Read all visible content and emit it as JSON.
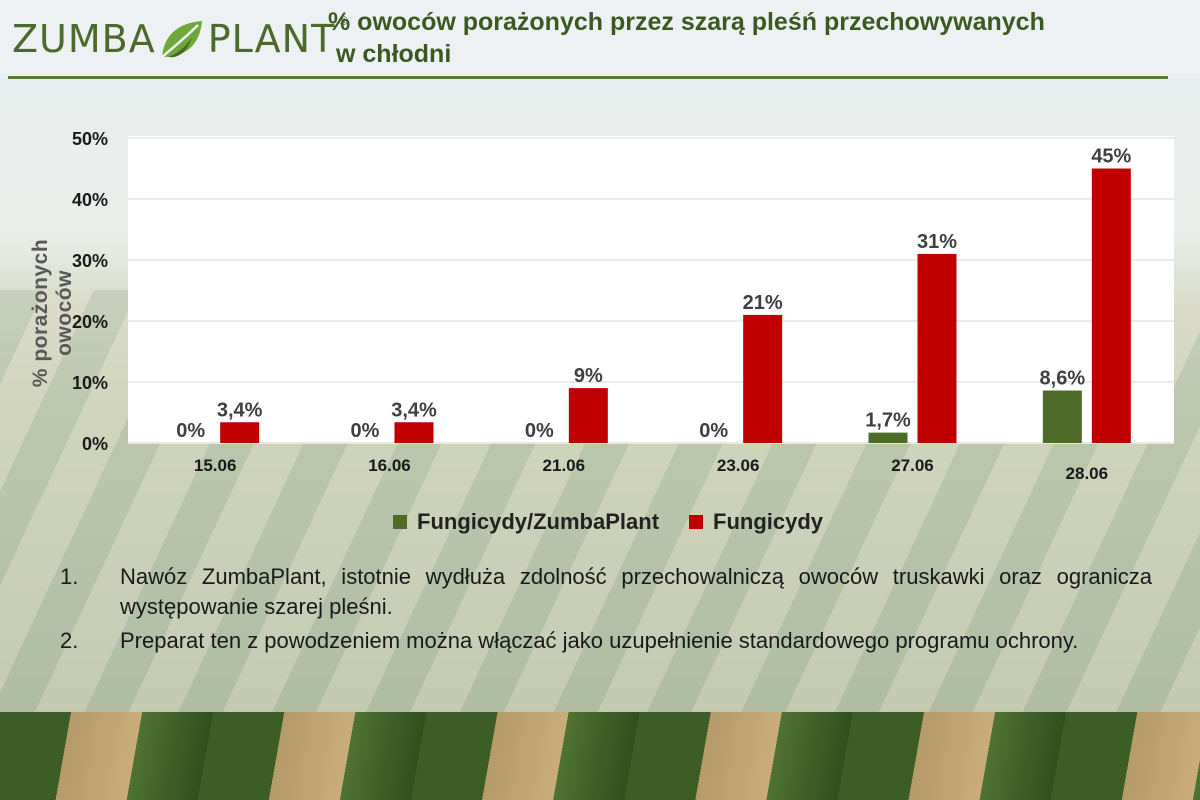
{
  "header": {
    "logo_left": "ZUMBA",
    "logo_right": "PLANT",
    "logo_reg": "®",
    "title_line1": "% owoców porażonych przez szarą pleśń przechowywanych",
    "title_line2": "w chłodni"
  },
  "colors": {
    "series1": "#4e6b2a",
    "series2": "#c00000",
    "accent": "#3a5a22"
  },
  "chart_data": {
    "type": "bar",
    "categories": [
      "15.06",
      "16.06",
      "21.06",
      "23.06",
      "27.06",
      "28.06"
    ],
    "series": [
      {
        "name": "Fungicydy/ZumbaPlant",
        "values": [
          0,
          0,
          0,
          0,
          1.7,
          8.6
        ],
        "labels": [
          "0%",
          "0%",
          "0%",
          "0%",
          "1,7%",
          "8,6%"
        ]
      },
      {
        "name": "Fungicydy",
        "values": [
          3.4,
          3.4,
          9,
          21,
          31,
          45
        ],
        "labels": [
          "3,4%",
          "3,4%",
          "9%",
          "21%",
          "31%",
          "45%"
        ]
      }
    ],
    "ylabel": "% porażonych owoców",
    "ylim": [
      0,
      50
    ],
    "yticks": [
      "0%",
      "10%",
      "20%",
      "30%",
      "40%",
      "50%"
    ],
    "grid": true,
    "legend": "bottom"
  },
  "notes": [
    {
      "num": "1.",
      "text": "Nawóz ZumbaPlant, istotnie wydłuża zdolność przechowalniczą owoców truskawki oraz ogranicza występowanie szarej pleśni."
    },
    {
      "num": "2.",
      "text": "Preparat ten z powodzeniem można włączać jako uzupełnienie standardowego programu ochrony."
    }
  ]
}
